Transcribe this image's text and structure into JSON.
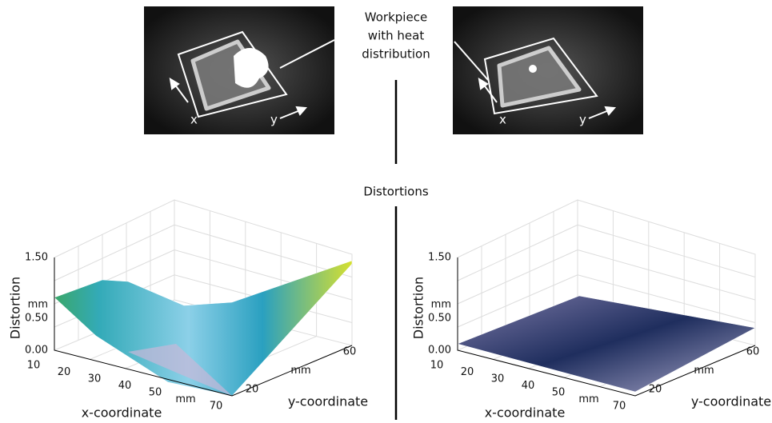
{
  "annotations": {
    "workpiece": [
      "Workpiece",
      "with heat",
      "distribution"
    ],
    "distortions": "Distortions"
  },
  "images": [
    {
      "x_label": "x",
      "y_label": "y"
    },
    {
      "x_label": "x",
      "y_label": "y"
    }
  ],
  "plots": [
    {
      "z_label": "Distortion",
      "z_ticks": [
        "1.50",
        "mm",
        "0.50",
        "0.00"
      ],
      "x_label": "x-coordinate",
      "x_ticks": [
        "10",
        "20",
        "30",
        "40",
        "50",
        "mm",
        "70"
      ],
      "y_label": "y-coordinate",
      "y_ticks": [
        "20",
        "mm",
        "60"
      ]
    },
    {
      "z_label": "Distortion",
      "z_ticks": [
        "1.50",
        "mm",
        "0.50",
        "0.00"
      ],
      "x_label": "x-coordinate",
      "x_ticks": [
        "10",
        "20",
        "30",
        "40",
        "50",
        "mm",
        "70"
      ],
      "y_label": "y-coordinate",
      "y_ticks": [
        "20",
        "mm",
        "60"
      ]
    }
  ]
}
